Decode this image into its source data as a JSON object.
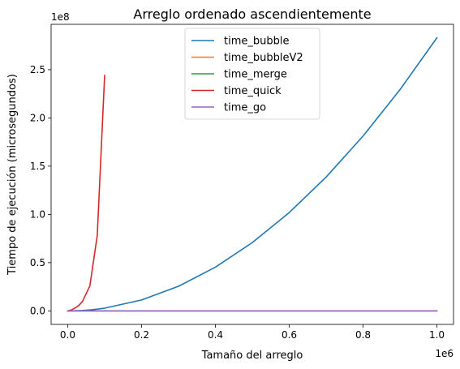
{
  "chart_data": {
    "type": "line",
    "title": "Arreglo ordenado ascendientemente",
    "xlabel": "Tamaño del arreglo",
    "ylabel": "Tiempo de ejecución (microsegundos)",
    "x_offset_label": "1e6",
    "y_offset_label": "1e8",
    "x_scale": 1000000,
    "y_scale": 100000000,
    "xlim": [
      -45000,
      1045000
    ],
    "ylim": [
      -14000000,
      297000000
    ],
    "xticks": [
      0,
      200000,
      400000,
      600000,
      800000,
      1000000
    ],
    "xtick_labels": [
      "0.0",
      "0.2",
      "0.4",
      "0.6",
      "0.8",
      "1.0"
    ],
    "yticks": [
      0,
      50000000,
      100000000,
      150000000,
      200000000,
      250000000
    ],
    "ytick_labels": [
      "0.0",
      "0.5",
      "1.0",
      "1.5",
      "2.0",
      "2.5"
    ],
    "grid": false,
    "legend_position": "upper center",
    "series": [
      {
        "name": "time_bubble",
        "color": "#1f77b4",
        "x": [
          0,
          10000,
          20000,
          40000,
          60000,
          80000,
          100000,
          200000,
          300000,
          400000,
          500000,
          600000,
          700000,
          800000,
          900000,
          1000000
        ],
        "y": [
          0,
          30000,
          110000,
          450000,
          1000000,
          1800000,
          2800000,
          11300000,
          25500000,
          45300000,
          70800000,
          101900000,
          138700000,
          181200000,
          229300000,
          283000000
        ]
      },
      {
        "name": "time_bubbleV2",
        "color": "#ff7f0e",
        "x": [
          0,
          10000,
          20000,
          40000,
          60000,
          80000,
          100000,
          200000,
          300000,
          400000,
          500000,
          600000,
          700000,
          800000,
          900000,
          1000000
        ],
        "y": [
          0,
          0,
          0,
          0,
          0,
          0,
          0,
          0,
          0,
          0,
          0,
          0,
          0,
          0,
          0,
          0
        ]
      },
      {
        "name": "time_merge",
        "color": "#2ca02c",
        "x": [
          0,
          10000,
          20000,
          40000,
          60000,
          80000,
          100000,
          200000,
          300000,
          400000,
          500000,
          600000,
          700000,
          800000,
          900000,
          1000000
        ],
        "y": [
          0,
          0,
          0,
          0,
          0,
          0,
          0,
          0,
          0,
          0,
          0,
          0,
          0,
          0,
          0,
          0
        ]
      },
      {
        "name": "time_quick",
        "color": "#d62728",
        "x": [
          0,
          10000,
          20000,
          30000,
          40000,
          60000,
          80000,
          100000
        ],
        "y": [
          0,
          1000000,
          3000000,
          5600000,
          9800000,
          26000000,
          78000000,
          244000000
        ]
      },
      {
        "name": "time_go",
        "color": "#9467bd",
        "x": [
          0,
          10000,
          20000,
          40000,
          60000,
          80000,
          100000,
          200000,
          300000,
          400000,
          500000,
          600000,
          700000,
          800000,
          900000,
          1000000
        ],
        "y": [
          0,
          0,
          0,
          0,
          0,
          0,
          0,
          0,
          0,
          0,
          0,
          0,
          0,
          0,
          0,
          0
        ]
      }
    ]
  }
}
